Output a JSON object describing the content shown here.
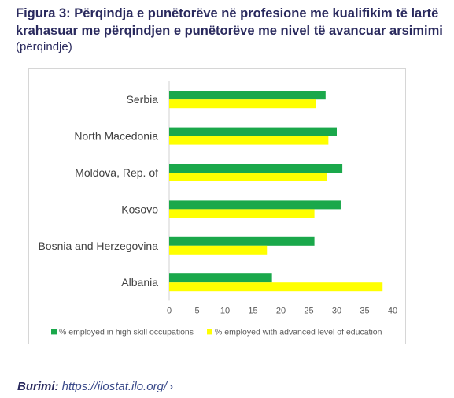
{
  "title": "Figura 3: Përqindja e punëtorëve në profesione me kualifikim të lartë krahasuar me përqindjen e punëtorëve me nivel të avancuar arsimimi",
  "subtitle": "(përqindje)",
  "source": {
    "label": "Burimi:",
    "link_text": "https://ilostat.ilo.org/",
    "chevron": "›"
  },
  "chart_data": {
    "type": "bar",
    "orientation": "horizontal",
    "categories": [
      "Serbia",
      "North Macedonia",
      "Moldova, Rep. of",
      "Kosovo",
      "Bosnia and Herzegovina",
      "Albania"
    ],
    "series": [
      {
        "name": "% employed in high skill occupations",
        "color": "#1aa84b",
        "values": [
          28,
          30,
          31,
          30.7,
          26,
          18.4
        ]
      },
      {
        "name": "% employed with advanced level of education",
        "color": "#ffff00",
        "values": [
          26.3,
          28.5,
          28.3,
          26,
          17.5,
          38.2
        ]
      }
    ],
    "xlim": [
      0,
      40
    ],
    "xticks": [
      "0",
      "5",
      "10",
      "15",
      "20",
      "25",
      "30",
      "35",
      "40"
    ],
    "grid": false,
    "legend_position": "bottom"
  }
}
